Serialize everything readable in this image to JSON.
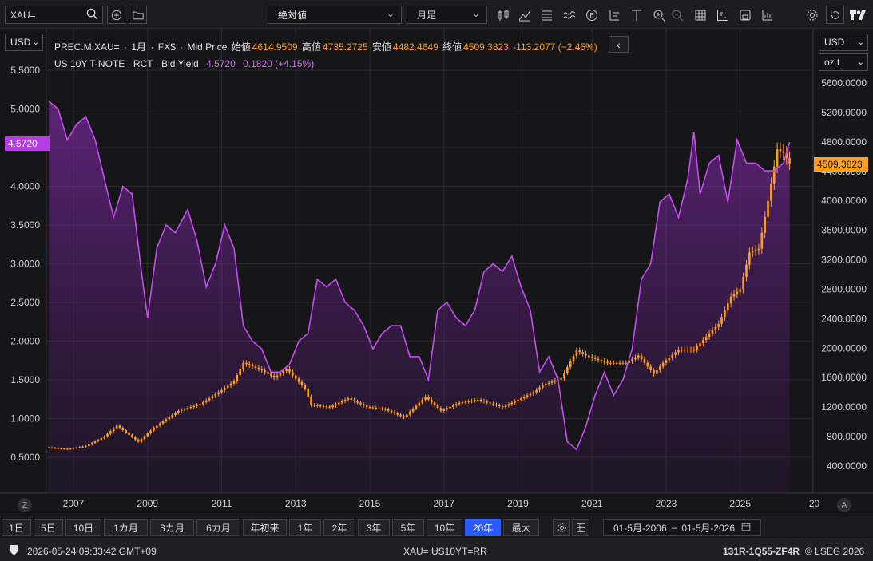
{
  "toolbar": {
    "symbol": "XAU=",
    "scale_mode": "絶対値",
    "interval": "月足",
    "icons": [
      "search-icon",
      "add-icon",
      "folder-icon",
      "candlestick-icon",
      "line-chart-icon",
      "bars-icon",
      "wave-icon",
      "event-icon",
      "crosshair-icon",
      "text-icon",
      "zoom-in-icon",
      "zoom-out-icon",
      "table-icon",
      "compare-icon",
      "save-icon",
      "studies-icon",
      "settings-icon",
      "reset-icon",
      "tradingview-logo-icon"
    ]
  },
  "left_axis": {
    "currency": "USD",
    "ticks": [
      "5.5000",
      "5.0000",
      "4.5000",
      "4.0000",
      "3.5000",
      "3.0000",
      "2.5000",
      "2.0000",
      "1.5000",
      "1.0000",
      "0.5000"
    ],
    "current_label": "4.5720"
  },
  "right_axis": {
    "currency": "USD",
    "unit": "oz t",
    "ticks": [
      "5600.0000",
      "5200.0000",
      "4800.0000",
      "4400.0000",
      "4000.0000",
      "3600.0000",
      "3200.0000",
      "2800.0000",
      "2400.0000",
      "2000.0000",
      "1600.0000",
      "1200.0000",
      "800.0000",
      "400.0000"
    ],
    "current_label": "4509.3823"
  },
  "legend": {
    "gold": {
      "name": "PREC.M.XAU=",
      "separator": "·",
      "period": "1月",
      "fx": "FX$",
      "price_type": "Mid Price",
      "open_label": "始値",
      "open": "4614.9509",
      "high_label": "高値",
      "high": "4735.2725",
      "low_label": "安値",
      "low": "4482.4649",
      "close_label": "終値",
      "close": "4509.3823",
      "change": "-113.2077 (−2.45%)"
    },
    "bond": {
      "name": "US 10Y T-NOTE · RCT · Bid Yield",
      "value": "4.5720",
      "change": "0.1820 (+4.15%)"
    },
    "collapse_icon": "‹"
  },
  "x_axis": {
    "ticks": [
      "2007",
      "2009",
      "2011",
      "2013",
      "2015",
      "2017",
      "2019",
      "2021",
      "2023",
      "2025",
      "20"
    ],
    "left_marker": "Z",
    "right_marker": "A"
  },
  "range_buttons": [
    "1日",
    "5日",
    "10日",
    "1カ月",
    "3カ月",
    "6カ月",
    "年初来",
    "1年",
    "2年",
    "3年",
    "5年",
    "10年",
    "20年",
    "最大"
  ],
  "active_range": "20年",
  "date_range": {
    "from": "01-5月-2006",
    "to": "01-5月-2026",
    "sep": "–"
  },
  "status": {
    "timestamp": "2026-05-24 09:33:42 GMT+09",
    "instruments": "XAU= US10YT=RR",
    "code": "131R-1Q55-ZF4R",
    "copyright": "© LSEG 2026"
  },
  "colors": {
    "gold": "#ff9e1f",
    "yield": "#c64cf0",
    "active": "#2a5bff",
    "background": "#161618"
  },
  "chart_data": {
    "type": "line",
    "x_range": [
      "2006-05",
      "2026-05"
    ],
    "series": [
      {
        "name": "US 10Y T-NOTE · RCT · Bid Yield",
        "axis": "left",
        "style": "line-area",
        "x": [
          "2006-05",
          "2006-08",
          "2006-11",
          "2007-02",
          "2007-05",
          "2007-08",
          "2007-11",
          "2008-02",
          "2008-05",
          "2008-08",
          "2008-11",
          "2009-01",
          "2009-04",
          "2009-07",
          "2009-10",
          "2010-02",
          "2010-05",
          "2010-08",
          "2010-11",
          "2011-02",
          "2011-05",
          "2011-08",
          "2011-11",
          "2012-02",
          "2012-05",
          "2012-08",
          "2012-11",
          "2013-02",
          "2013-05",
          "2013-08",
          "2013-11",
          "2014-02",
          "2014-05",
          "2014-08",
          "2014-11",
          "2015-02",
          "2015-05",
          "2015-08",
          "2015-11",
          "2016-02",
          "2016-05",
          "2016-08",
          "2016-11",
          "2017-02",
          "2017-05",
          "2017-08",
          "2017-11",
          "2018-02",
          "2018-05",
          "2018-08",
          "2018-11",
          "2019-02",
          "2019-05",
          "2019-08",
          "2019-11",
          "2020-02",
          "2020-05",
          "2020-08",
          "2020-11",
          "2021-02",
          "2021-05",
          "2021-08",
          "2021-11",
          "2022-02",
          "2022-05",
          "2022-08",
          "2022-11",
          "2023-02",
          "2023-05",
          "2023-08",
          "2023-10",
          "2023-12",
          "2024-03",
          "2024-06",
          "2024-09",
          "2024-12",
          "2025-03",
          "2025-06",
          "2025-09",
          "2025-12",
          "2026-03",
          "2026-05"
        ],
        "values": [
          5.1,
          5.0,
          4.6,
          4.8,
          4.9,
          4.6,
          4.1,
          3.6,
          4.0,
          3.9,
          2.9,
          2.3,
          3.2,
          3.5,
          3.4,
          3.7,
          3.3,
          2.7,
          3.0,
          3.5,
          3.2,
          2.2,
          2.0,
          1.9,
          1.6,
          1.6,
          1.7,
          2.0,
          2.1,
          2.8,
          2.7,
          2.8,
          2.5,
          2.4,
          2.2,
          1.9,
          2.1,
          2.2,
          2.2,
          1.8,
          1.8,
          1.5,
          2.4,
          2.5,
          2.3,
          2.2,
          2.4,
          2.9,
          3.0,
          2.9,
          3.1,
          2.7,
          2.4,
          1.6,
          1.8,
          1.5,
          0.7,
          0.6,
          0.9,
          1.3,
          1.6,
          1.3,
          1.5,
          1.9,
          2.8,
          3.0,
          3.8,
          3.9,
          3.6,
          4.1,
          4.7,
          3.9,
          4.3,
          4.4,
          3.8,
          4.6,
          4.3,
          4.3,
          4.2,
          4.2,
          4.3,
          4.57
        ]
      },
      {
        "name": "PREC.M.XAU=",
        "axis": "right",
        "style": "candlestick",
        "x": [
          "2006-05",
          "2006-11",
          "2007-05",
          "2007-11",
          "2008-03",
          "2008-10",
          "2009-03",
          "2009-11",
          "2010-06",
          "2010-12",
          "2011-05",
          "2011-08",
          "2012-02",
          "2012-06",
          "2012-10",
          "2013-04",
          "2013-06",
          "2013-12",
          "2014-06",
          "2014-12",
          "2015-06",
          "2015-12",
          "2016-07",
          "2016-12",
          "2017-06",
          "2017-12",
          "2018-08",
          "2018-12",
          "2019-06",
          "2019-09",
          "2020-03",
          "2020-08",
          "2020-12",
          "2021-06",
          "2021-12",
          "2022-04",
          "2022-09",
          "2022-12",
          "2023-05",
          "2023-10",
          "2024-03",
          "2024-06",
          "2024-10",
          "2025-01",
          "2025-04",
          "2025-07",
          "2025-10",
          "2026-01",
          "2026-03",
          "2026-05"
        ],
        "values": [
          650,
          630,
          670,
          800,
          950,
          730,
          920,
          1150,
          1240,
          1400,
          1550,
          1800,
          1700,
          1600,
          1720,
          1450,
          1230,
          1200,
          1320,
          1200,
          1170,
          1060,
          1340,
          1150,
          1260,
          1300,
          1200,
          1280,
          1400,
          1500,
          1590,
          1970,
          1880,
          1800,
          1800,
          1900,
          1650,
          1800,
          1980,
          1980,
          2200,
          2330,
          2700,
          2800,
          3300,
          3350,
          4000,
          4700,
          4650,
          4509
        ]
      }
    ]
  }
}
